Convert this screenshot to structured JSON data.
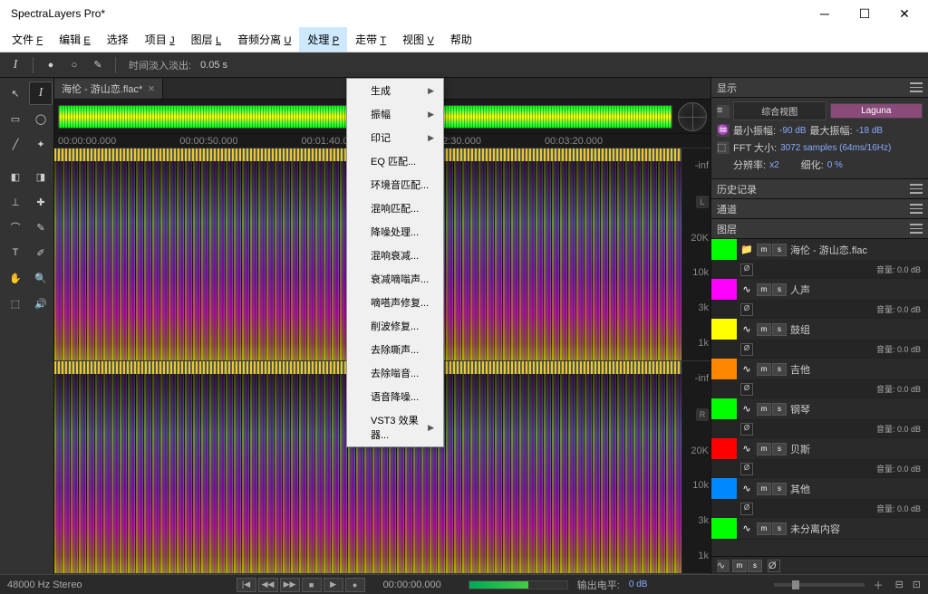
{
  "window": {
    "title": "SpectraLayers Pro*"
  },
  "menu": {
    "items": [
      {
        "label": "文件",
        "ul": "F"
      },
      {
        "label": "编辑",
        "ul": "E"
      },
      {
        "label": "选择",
        "ul": ""
      },
      {
        "label": "项目",
        "ul": "J"
      },
      {
        "label": "图层",
        "ul": "L"
      },
      {
        "label": "音频分离",
        "ul": "U"
      },
      {
        "label": "处理",
        "ul": "P",
        "active": true
      },
      {
        "label": "走带",
        "ul": "T"
      },
      {
        "label": "视图",
        "ul": "V"
      },
      {
        "label": "帮助",
        "ul": ""
      }
    ]
  },
  "dropdown": {
    "items": [
      {
        "label": "生成",
        "sub": true
      },
      {
        "label": "振幅",
        "sub": true
      },
      {
        "label": "印记",
        "sub": true
      },
      {
        "label": "EQ 匹配..."
      },
      {
        "label": "环境音匹配..."
      },
      {
        "label": "混响匹配..."
      },
      {
        "label": "降噪处理..."
      },
      {
        "label": "混响衰减..."
      },
      {
        "label": "衰减嘀嗡声..."
      },
      {
        "label": "嘀嗒声修复..."
      },
      {
        "label": "削波修复..."
      },
      {
        "label": "去除嘶声..."
      },
      {
        "label": "去除嗡音..."
      },
      {
        "label": "语音降噪..."
      },
      {
        "label": "VST3 效果器...",
        "sub": true
      }
    ]
  },
  "toolbar": {
    "fade_label": "时间淡入淡出:",
    "fade_value": "0.05 s"
  },
  "tab": {
    "name": "海伦 - 游山恋.flac*"
  },
  "timeline": {
    "marks": [
      "00:00:00.000",
      "00:00:50.000",
      "00:01:40.000",
      "00:02:30.000",
      "00:03:20.000"
    ]
  },
  "scale": {
    "top": "-inf",
    "m1": "20K",
    "m2": "10k",
    "m3": "3k",
    "m4": "1k",
    "chL": "L",
    "chR": "R"
  },
  "display": {
    "title": "显示",
    "row1": {
      "btn1": "综合视图",
      "btn2": "Laguna"
    },
    "row2": {
      "l1": "最小振幅:",
      "v1": "-90 dB",
      "l2": "最大振幅:",
      "v2": "-18 dB"
    },
    "row3": {
      "l": "FFT 大小:",
      "v": "3072 samples (64ms/16Hz)"
    },
    "row4": {
      "l1": "分辨率:",
      "v1": "x2",
      "l2": "细化:",
      "v2": "0 %"
    }
  },
  "panels": {
    "history": "历史记录",
    "channels": "通道",
    "layers": "图层"
  },
  "layers": {
    "master": {
      "name": "海伦 - 游山恋.flac",
      "color": "#00ff00",
      "vol": "音量: 0.0 dB"
    },
    "tracks": [
      {
        "name": "人声",
        "color": "#ff00ff",
        "vol": "音量: 0.0 dB"
      },
      {
        "name": "鼓组",
        "color": "#ffff00",
        "vol": "音量: 0.0 dB"
      },
      {
        "name": "吉他",
        "color": "#ff8800",
        "vol": "音量: 0.0 dB"
      },
      {
        "name": "钢琴",
        "color": "#00ff00",
        "vol": "音量: 0.0 dB"
      },
      {
        "name": "贝斯",
        "color": "#ff0000",
        "vol": "音量: 0.0 dB"
      },
      {
        "name": "其他",
        "color": "#0088ff",
        "vol": "音量: 0.0 dB"
      },
      {
        "name": "未分离内容",
        "color": "#00ff00",
        "vol": ""
      }
    ]
  },
  "status": {
    "format": "48000 Hz Stereo",
    "time": "00:00:00.000",
    "level_label": "输出电平:",
    "level_val": "0 dB"
  }
}
